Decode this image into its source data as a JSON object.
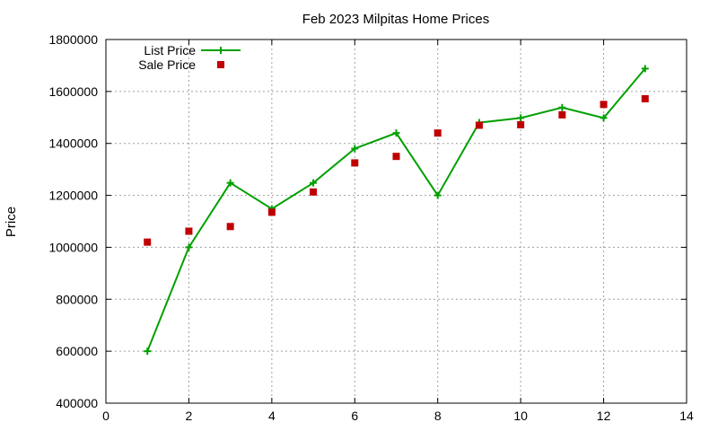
{
  "chart_data": {
    "type": "line",
    "title": "Feb 2023 Milpitas Home Prices",
    "xlabel": "",
    "ylabel": "Price",
    "xlim": [
      0,
      14
    ],
    "ylim": [
      400000,
      1800000
    ],
    "xticks": [
      0,
      2,
      4,
      6,
      8,
      10,
      12,
      14
    ],
    "yticks": [
      400000,
      600000,
      800000,
      1000000,
      1200000,
      1400000,
      1600000,
      1800000
    ],
    "xtick_labels": [
      "0",
      "2",
      "4",
      "6",
      "8",
      "10",
      "12",
      "14"
    ],
    "ytick_labels": [
      "400000",
      "600000",
      "800000",
      "1000000",
      "1200000",
      "1400000",
      "1600000",
      "1800000"
    ],
    "grid": true,
    "legend_position": "top-left",
    "series": [
      {
        "name": "List Price",
        "style": "linespoints",
        "marker": "plus",
        "color": "#00a000",
        "x": [
          1,
          2,
          3,
          4,
          5,
          6,
          7,
          8,
          9,
          10,
          11,
          12,
          13
        ],
        "values": [
          600000,
          1000000,
          1248000,
          1148000,
          1248000,
          1380000,
          1440000,
          1200000,
          1480000,
          1498000,
          1538000,
          1498000,
          1688000
        ]
      },
      {
        "name": "Sale Price",
        "style": "points",
        "marker": "square",
        "color": "#c00000",
        "x": [
          1,
          2,
          3,
          4,
          5,
          6,
          7,
          8,
          9,
          10,
          11,
          12,
          13
        ],
        "values": [
          1020000,
          1062000,
          1080000,
          1135000,
          1213000,
          1325000,
          1350000,
          1440000,
          1470000,
          1472000,
          1510000,
          1550000,
          1572000
        ]
      }
    ]
  }
}
